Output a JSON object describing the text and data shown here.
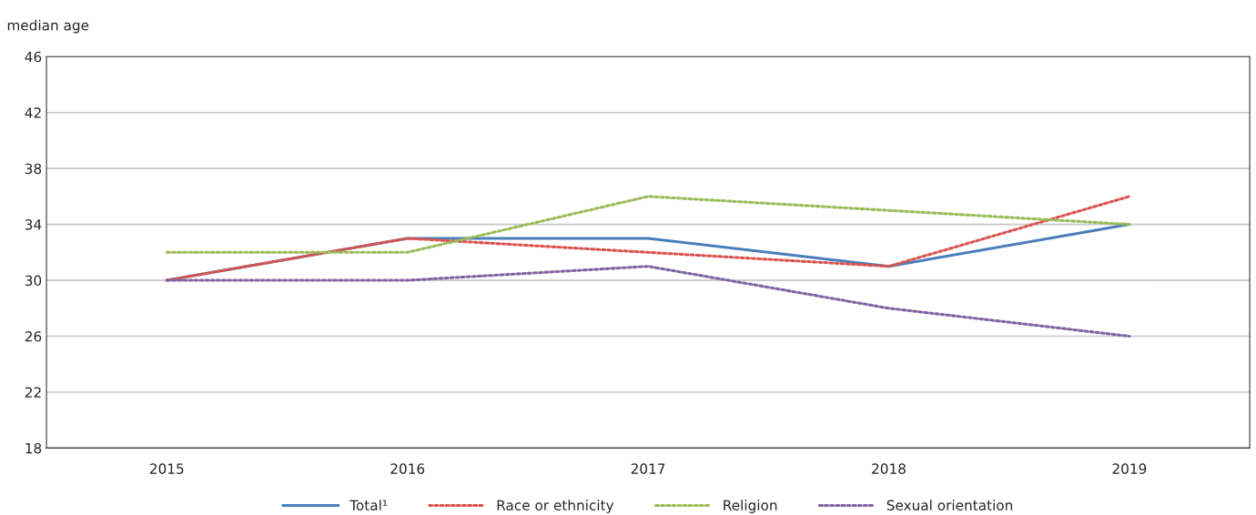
{
  "chart_data": {
    "type": "line",
    "ylabel": "median age",
    "categories": [
      "2015",
      "2016",
      "2017",
      "2018",
      "2019"
    ],
    "series": [
      {
        "name": "Total¹",
        "color": "#4a7ebb",
        "line_style": "solid",
        "values": [
          30,
          33,
          33,
          31,
          34
        ]
      },
      {
        "name": "Race or ethnicity",
        "color": "#d9534f",
        "line_style": "dotted",
        "values": [
          30,
          33,
          32,
          31,
          36
        ]
      },
      {
        "name": "Religion",
        "color": "#9bbb59",
        "line_style": "dotted",
        "values": [
          32,
          32,
          36,
          35,
          34
        ]
      },
      {
        "name": "Sexual orientation",
        "color": "#8064a2",
        "line_style": "dotted",
        "values": [
          30,
          30,
          31,
          28,
          26
        ]
      }
    ],
    "ylim": [
      18,
      46
    ],
    "yticks": [
      18,
      22,
      26,
      30,
      34,
      38,
      42,
      46
    ],
    "grid": "y",
    "legend": "bottom",
    "marker": "none"
  }
}
